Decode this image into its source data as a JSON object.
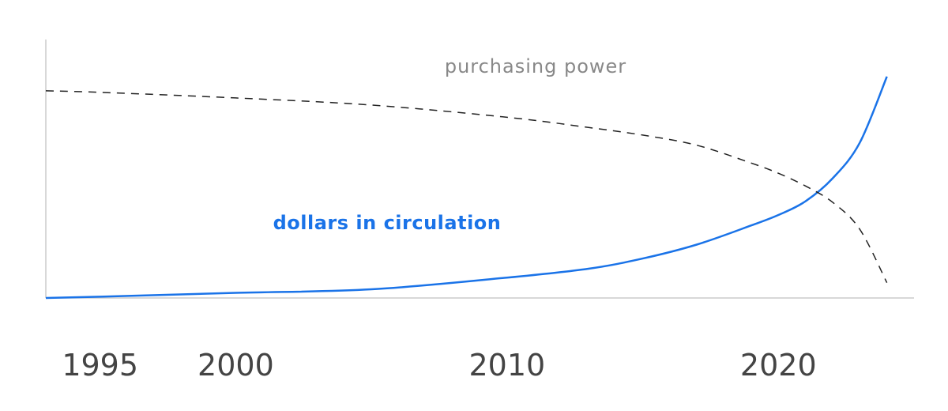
{
  "chart_data": {
    "type": "line",
    "x": [
      1993,
      1995,
      2000,
      2005,
      2010,
      2013,
      2015,
      2017,
      2019,
      2020,
      2021,
      2022,
      2023,
      2024
    ],
    "series": [
      {
        "name": "dollars in circulation",
        "color": "#1a73e8",
        "dash": false,
        "values": [
          0,
          0.5,
          2,
          3.4,
          8,
          11.5,
          15.5,
          21,
          28.5,
          32.6,
          38,
          47,
          61,
          87
        ]
      },
      {
        "name": "purchasing power",
        "color": "#222222",
        "dash": true,
        "values": [
          81.4,
          80.8,
          78.6,
          75.8,
          71,
          67,
          64,
          60,
          53,
          49,
          44,
          37.6,
          27,
          6
        ]
      }
    ],
    "xlim": [
      1993,
      2025
    ],
    "xticks": [
      1995,
      2000,
      2010,
      2020
    ],
    "ylim": [
      0,
      100
    ]
  }
}
